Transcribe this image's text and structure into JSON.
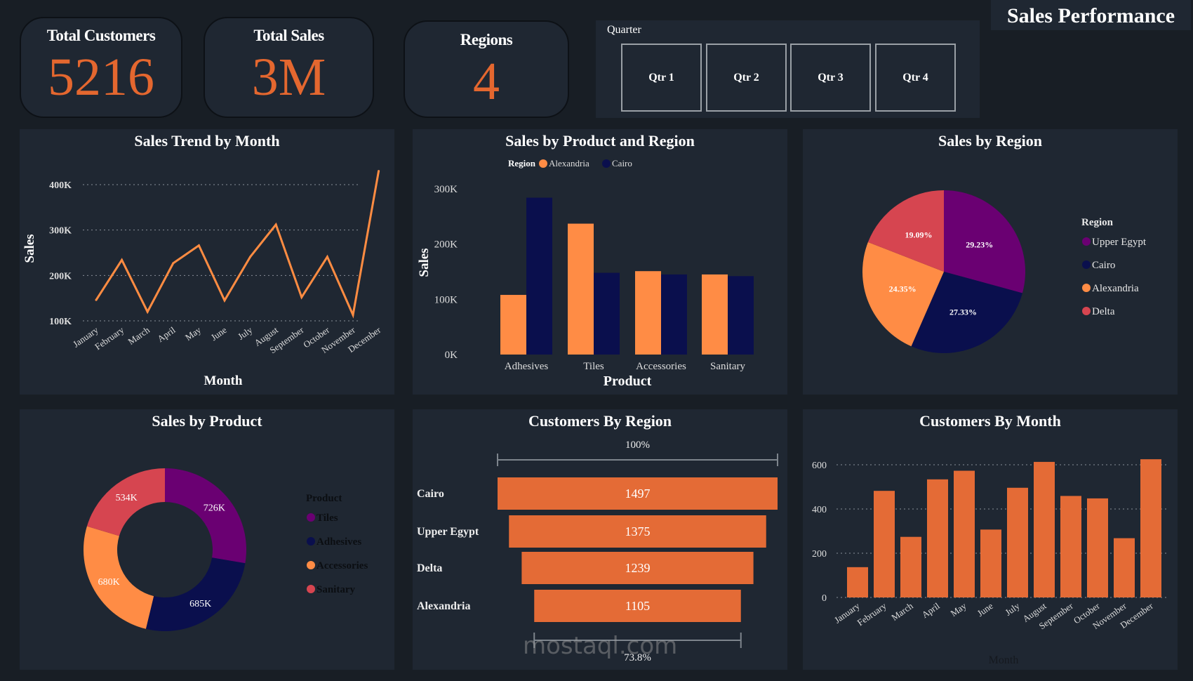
{
  "header": {
    "title": "Sales Performance"
  },
  "kpis": [
    {
      "label": "Total Customers",
      "value": "5216"
    },
    {
      "label": "Total Sales",
      "value": "3M"
    },
    {
      "label": "Regions",
      "value": "4"
    }
  ],
  "quarter_slicer": {
    "label": "Quarter",
    "options": [
      "Qtr 1",
      "Qtr 2",
      "Qtr 3",
      "Qtr 4"
    ]
  },
  "colors": {
    "orange_line": "#ff8c42",
    "bar_orange": "#e46b36",
    "purple": "#6a0072",
    "navy": "#0a0f4d",
    "light_orange": "#ff8c45",
    "red": "#d64550",
    "panel": "#1f2732",
    "background": "#181e25"
  },
  "watermark": "mostaql.com",
  "chart_data": [
    {
      "id": "sales_trend",
      "type": "line",
      "title": "Sales Trend by Month",
      "xlabel": "Month",
      "ylabel": "Sales",
      "categories": [
        "January",
        "February",
        "March",
        "April",
        "May",
        "June",
        "July",
        "August",
        "September",
        "October",
        "November",
        "December"
      ],
      "values": [
        146000,
        234000,
        120000,
        227000,
        266000,
        145000,
        241000,
        312000,
        152000,
        241000,
        113000,
        430000
      ],
      "yticks": [
        "100K",
        "200K",
        "300K",
        "400K"
      ],
      "ytick_values": [
        100000,
        200000,
        300000,
        400000
      ],
      "ylim": [
        100000,
        400000
      ],
      "grid": true
    },
    {
      "id": "sales_product_region",
      "type": "bar",
      "title": "Sales by Product and Region",
      "xlabel": "Product",
      "ylabel": "Sales",
      "legend_title": "Region",
      "legend_position": "top",
      "categories": [
        "Adhesives",
        "Tiles",
        "Accessories",
        "Sanitary"
      ],
      "series": [
        {
          "name": "Alexandria",
          "values": [
            108000,
            237000,
            151000,
            145000
          ]
        },
        {
          "name": "Cairo",
          "values": [
            284000,
            148000,
            145000,
            142000
          ]
        }
      ],
      "yticks": [
        "0K",
        "100K",
        "200K",
        "300K"
      ],
      "ytick_values": [
        0,
        100000,
        200000,
        300000
      ],
      "ylim": [
        0,
        300000
      ],
      "grid": false
    },
    {
      "id": "sales_region",
      "type": "pie",
      "title": "Sales by Region",
      "legend_title": "Region",
      "legend_position": "right",
      "slices": [
        {
          "label": "Upper Egypt",
          "value": 29.23,
          "text": "29.23%"
        },
        {
          "label": "Cairo",
          "value": 27.33,
          "text": "27.33%"
        },
        {
          "label": "Alexandria",
          "value": 24.35,
          "text": "24.35%"
        },
        {
          "label": "Delta",
          "value": 19.09,
          "text": "19.09%"
        }
      ]
    },
    {
      "id": "sales_product",
      "type": "pie",
      "donut": true,
      "title": "Sales by Product",
      "legend_title": "Product",
      "legend_position": "right",
      "slices": [
        {
          "label": "Tiles",
          "value": 726000,
          "text": "726K"
        },
        {
          "label": "Adhesives",
          "value": 685000,
          "text": "685K"
        },
        {
          "label": "Accessories",
          "value": 680000,
          "text": "680K"
        },
        {
          "label": "Sanitary",
          "value": 534000,
          "text": "534K"
        }
      ]
    },
    {
      "id": "customers_region",
      "type": "bar",
      "orientation": "funnel",
      "title": "Customers By Region",
      "categories": [
        "Cairo",
        "Upper Egypt",
        "Delta",
        "Alexandria"
      ],
      "values": [
        1497,
        1375,
        1239,
        1105
      ],
      "top_label": "100%",
      "bottom_label": "73.8%"
    },
    {
      "id": "customers_month",
      "type": "bar",
      "title": "Customers By Month",
      "xlabel": "Month",
      "categories": [
        "January",
        "February",
        "March",
        "April",
        "May",
        "June",
        "July",
        "August",
        "September",
        "October",
        "November",
        "December"
      ],
      "values": [
        137,
        482,
        274,
        534,
        573,
        307,
        496,
        613,
        459,
        448,
        268,
        625
      ],
      "yticks": [
        "0",
        "200",
        "400",
        "600"
      ],
      "ytick_values": [
        0,
        200,
        400,
        600
      ],
      "ylim": [
        0,
        600
      ],
      "grid": true
    }
  ]
}
